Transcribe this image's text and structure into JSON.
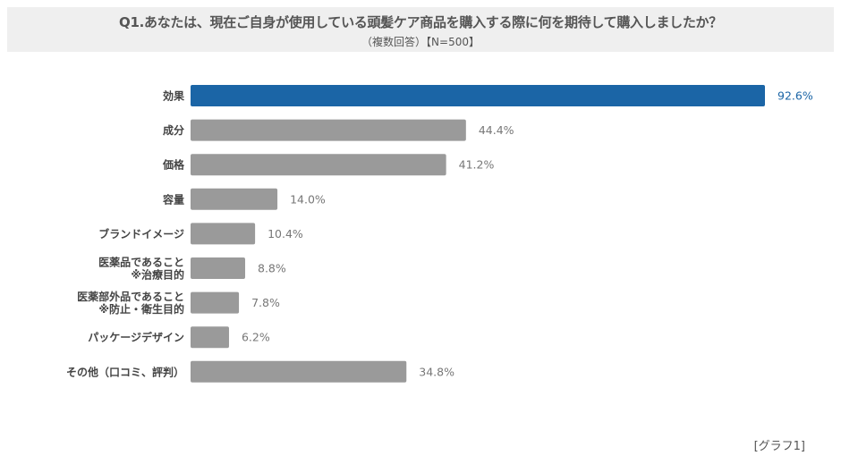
{
  "chart_data": {
    "type": "bar",
    "orientation": "horizontal",
    "title": "Q1.あなたは、現在ご自身が使用している頭髪ケア商品を購入する際に何を期待して購入しましたか？",
    "subtitle": "（複数回答）【N=500】",
    "categories": [
      [
        "効果"
      ],
      [
        "成分"
      ],
      [
        "価格"
      ],
      [
        "容量"
      ],
      [
        "ブランドイメージ"
      ],
      [
        "医薬品であること",
        "※治療目的"
      ],
      [
        "医薬部外品であること",
        "※防止・衛生目的"
      ],
      [
        "パッケージデザイン"
      ],
      [
        "その他（口コミ、評判）"
      ]
    ],
    "values": [
      92.6,
      44.4,
      41.2,
      14.0,
      10.4,
      8.8,
      7.8,
      6.2,
      34.8
    ],
    "labels": [
      "92.6%",
      "44.4%",
      "41.2%",
      "14.0%",
      "10.4%",
      "8.8%",
      "7.8%",
      "6.2%",
      "34.8%"
    ],
    "unit": "%",
    "xlim": [
      0,
      92.6
    ],
    "highlight_index": 0,
    "colors": {
      "highlight": "#1b65a6",
      "default": "#9a9a9a",
      "highlight_label": "#1b65a6",
      "default_label": "#777777",
      "category_label": "#444444"
    },
    "grid": false
  },
  "footer": "[グラフ1]"
}
